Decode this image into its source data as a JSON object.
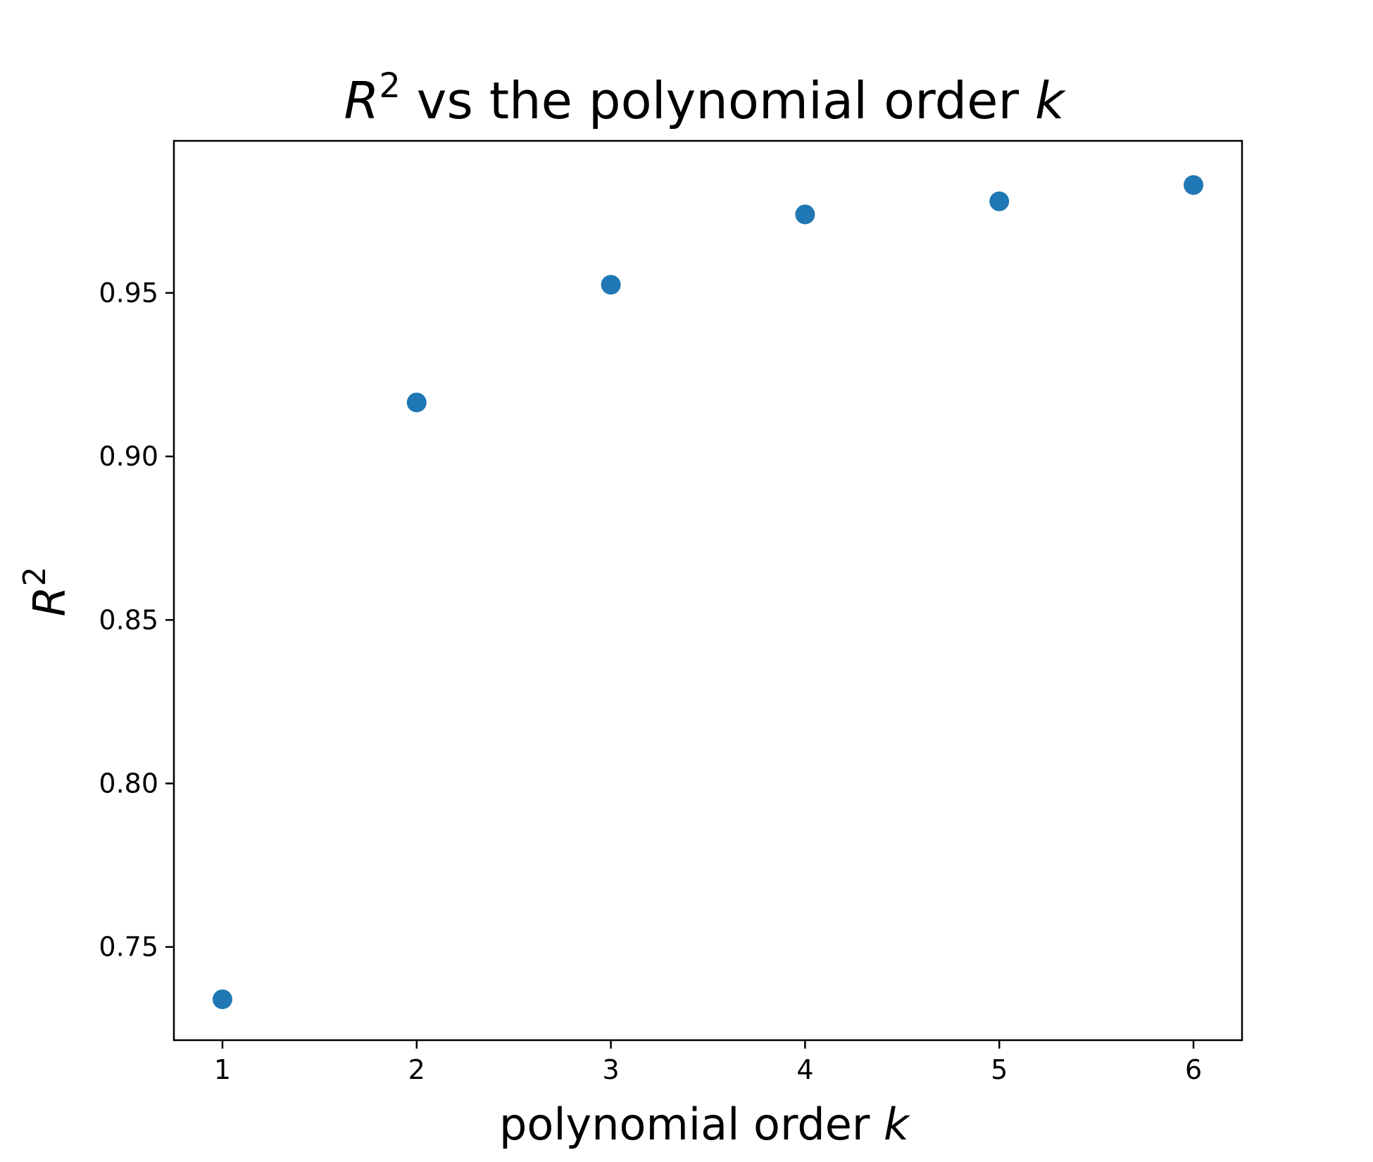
{
  "chart_data": {
    "type": "scatter",
    "title": {
      "main": "R",
      "superscript": "2",
      "middle": " vs the polynomial order ",
      "var": "k"
    },
    "xlabel": {
      "text": "polynomial order ",
      "var": "k"
    },
    "ylabel": {
      "main": "R",
      "superscript": "2"
    },
    "xlim": [
      0.75,
      6.25
    ],
    "ylim": [
      0.7215,
      0.9965
    ],
    "xticks": [
      1,
      2,
      3,
      4,
      5,
      6
    ],
    "xtick_labels": [
      "1",
      "2",
      "3",
      "4",
      "5",
      "6"
    ],
    "yticks": [
      0.75,
      0.8,
      0.85,
      0.9,
      0.95
    ],
    "ytick_labels": [
      "0.75",
      "0.80",
      "0.85",
      "0.90",
      "0.95"
    ],
    "grid": false,
    "color": "#1f77b4",
    "x": [
      1,
      2,
      3,
      4,
      5,
      6
    ],
    "y": [
      0.734,
      0.9165,
      0.9525,
      0.974,
      0.978,
      0.983
    ]
  }
}
